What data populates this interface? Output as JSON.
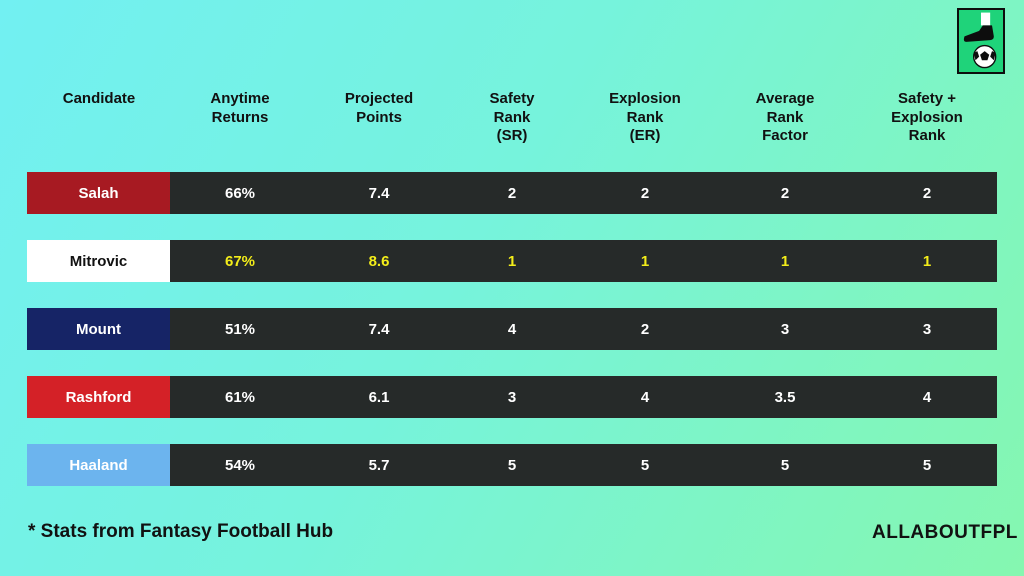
{
  "logo": {
    "icon": "boot-ball-icon",
    "bg_color": "#1fd37a"
  },
  "table": {
    "headers": [
      "Candidate",
      "Anytime\nReturns",
      "Projected\nPoints",
      "Safety\nRank\n(SR)",
      "Explosion\nRank\n(ER)",
      "Average\nRank\nFactor",
      "Safety +\nExplosion\nRank"
    ],
    "rows": [
      {
        "name": "Salah",
        "color": "#a71a22",
        "highlight": false,
        "values": [
          "66%",
          "7.4",
          "2",
          "2",
          "2",
          "2"
        ]
      },
      {
        "name": "Mitrovic",
        "color": "#ffffff",
        "highlight": true,
        "values": [
          "67%",
          "8.6",
          "1",
          "1",
          "1",
          "1"
        ]
      },
      {
        "name": "Mount",
        "color": "#162466",
        "highlight": false,
        "values": [
          "51%",
          "7.4",
          "4",
          "2",
          "3",
          "3"
        ]
      },
      {
        "name": "Rashford",
        "color": "#d42127",
        "highlight": false,
        "values": [
          "61%",
          "6.1",
          "3",
          "4",
          "3.5",
          "4"
        ]
      },
      {
        "name": "Haaland",
        "color": "#6cb4ee",
        "highlight": false,
        "values": [
          "54%",
          "5.7",
          "5",
          "5",
          "5",
          "5"
        ]
      }
    ],
    "cell_bg": "#262a29",
    "highlight_text_color": "#f3ed1a"
  },
  "footnote": "*  Stats from Fantasy Football Hub",
  "brand": "ALLABOUTFPL"
}
